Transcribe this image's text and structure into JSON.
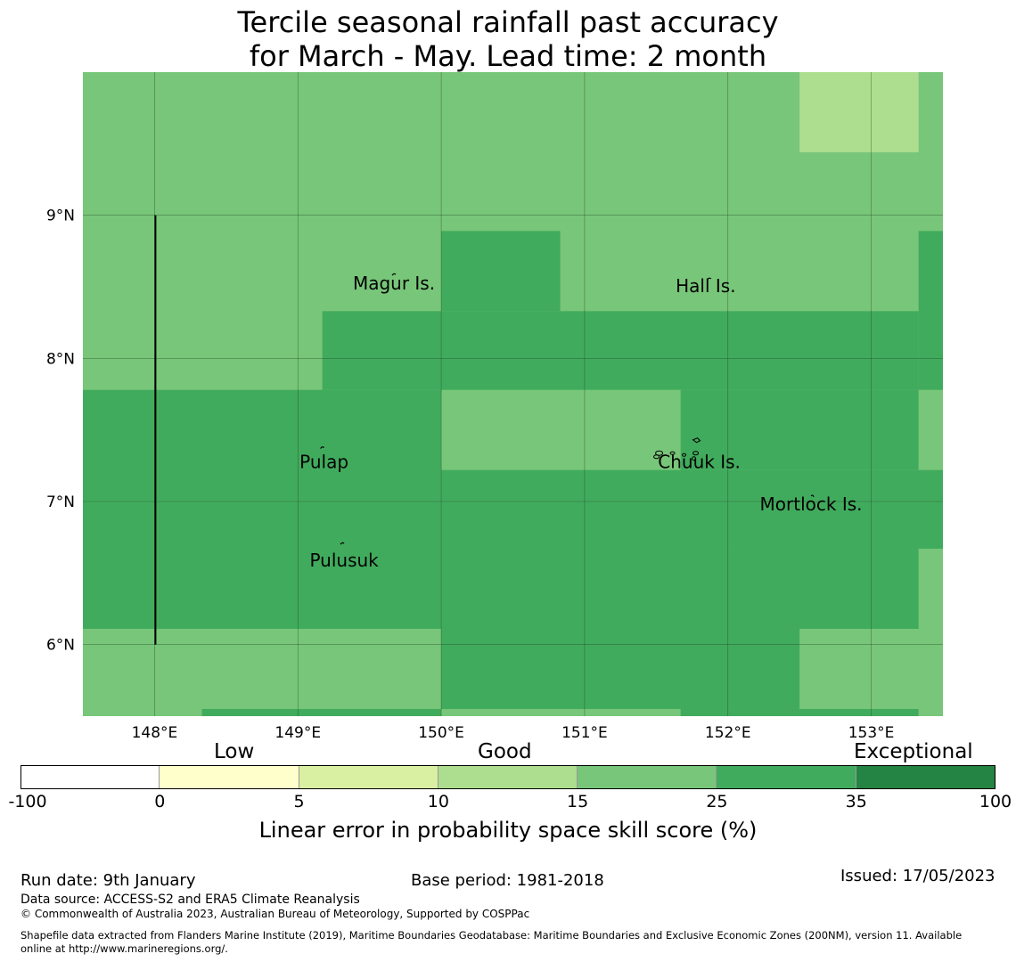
{
  "title": {
    "line1": "Tercile seasonal rainfall past accuracy",
    "line2": "for March - May. Lead time: 2 month"
  },
  "map": {
    "lon_range": [
      147.5,
      153.5
    ],
    "lat_range": [
      5.5,
      10.0
    ],
    "lon_ticks": [
      {
        "value": 148,
        "label": "148°E"
      },
      {
        "value": 149,
        "label": "149°E"
      },
      {
        "value": 150,
        "label": "150°E"
      },
      {
        "value": 151,
        "label": "151°E"
      },
      {
        "value": 152,
        "label": "152°E"
      },
      {
        "value": 153,
        "label": "153°E"
      }
    ],
    "lat_ticks": [
      {
        "value": 9,
        "label": "9°N"
      },
      {
        "value": 8,
        "label": "8°N"
      },
      {
        "value": 7,
        "label": "7°N"
      },
      {
        "value": 6,
        "label": "6°N"
      }
    ],
    "boundary_line": {
      "lon": 148,
      "lat_from": 6,
      "lat_to": 9
    },
    "cells": [
      {
        "lon": [
          147.5,
          153.5
        ],
        "lat": [
          5.5,
          10.0
        ],
        "class": 25
      },
      {
        "lon": [
          152.5,
          153.33
        ],
        "lat": [
          9.44,
          10.0
        ],
        "class": 15
      },
      {
        "lon": [
          150.0,
          150.83
        ],
        "lat": [
          8.33,
          8.89
        ],
        "class": 35
      },
      {
        "lon": [
          149.17,
          153.33
        ],
        "lat": [
          7.78,
          8.33
        ],
        "class": 35
      },
      {
        "lon": [
          153.33,
          153.5
        ],
        "lat": [
          7.78,
          8.89
        ],
        "class": 35
      },
      {
        "lon": [
          147.5,
          150.0
        ],
        "lat": [
          6.11,
          7.78
        ],
        "class": 35
      },
      {
        "lon": [
          150.0,
          153.5
        ],
        "lat": [
          6.67,
          7.22
        ],
        "class": 35
      },
      {
        "lon": [
          151.67,
          153.33
        ],
        "lat": [
          7.22,
          7.78
        ],
        "class": 35
      },
      {
        "lon": [
          150.0,
          153.33
        ],
        "lat": [
          6.11,
          6.67
        ],
        "class": 35
      },
      {
        "lon": [
          150.0,
          152.5
        ],
        "lat": [
          5.55,
          6.11
        ],
        "class": 35
      },
      {
        "lon": [
          148.33,
          150.0
        ],
        "lat": [
          5.5,
          5.55
        ],
        "class": 35
      },
      {
        "lon": [
          151.67,
          153.33
        ],
        "lat": [
          5.5,
          5.55
        ],
        "class": 35
      }
    ],
    "islands": [
      {
        "name": "Magur Is.",
        "lon": 149.67,
        "lat": 8.58
      },
      {
        "name": "Hall Is.",
        "lon": 151.87,
        "lat": 8.55
      },
      {
        "name": "Pulap",
        "lon": 149.17,
        "lat": 7.37
      },
      {
        "name": "Chuuk Is.",
        "lon": 151.8,
        "lat": 7.4
      },
      {
        "name": "Mortlock Is.",
        "lon": 152.58,
        "lat": 7.02
      },
      {
        "name": "Pulusuk",
        "lon": 149.31,
        "lat": 6.7
      }
    ]
  },
  "colorbar": {
    "bins": [
      {
        "from": "-100",
        "to": "0",
        "color": "#ffffff"
      },
      {
        "from": "0",
        "to": "5",
        "color": "#ffffcc"
      },
      {
        "from": "5",
        "to": "10",
        "color": "#d9f0a3"
      },
      {
        "from": "10",
        "to": "15",
        "color": "#addd8e"
      },
      {
        "from": "15",
        "to": "25",
        "color": "#78c679"
      },
      {
        "from": "25",
        "to": "35",
        "color": "#41ab5d"
      },
      {
        "from": "35",
        "to": "100",
        "color": "#238443"
      }
    ],
    "tick_labels": [
      "-100",
      "0",
      "5",
      "10",
      "15",
      "25",
      "35",
      "100"
    ],
    "category_low": "Low",
    "category_good": "Good",
    "category_exceptional": "Exceptional",
    "label": "Linear error in probability space skill score (%)"
  },
  "class_colors": {
    "15": "#addd8e",
    "25": "#78c679",
    "35": "#41ab5d"
  },
  "footer": {
    "run_date": "Run date: 9th January",
    "base_period": "Base period: 1981-2018",
    "issued": "Issued: 17/05/2023",
    "data_source": "Data source: ACCESS-S2 and ERA5 Climate Reanalysis",
    "copyright": "© Commonwealth of Australia 2023, Australian Bureau of Meteorology, Supported by COSPPac",
    "shapefile_line1": "Shapefile data extracted from Flanders Marine Institute (2019), Maritime Boundaries Geodatabase: Maritime Boundaries and Exclusive Economic Zones (200NM), version 11. Available",
    "shapefile_line2": "online at http://www.marineregions.org/."
  }
}
